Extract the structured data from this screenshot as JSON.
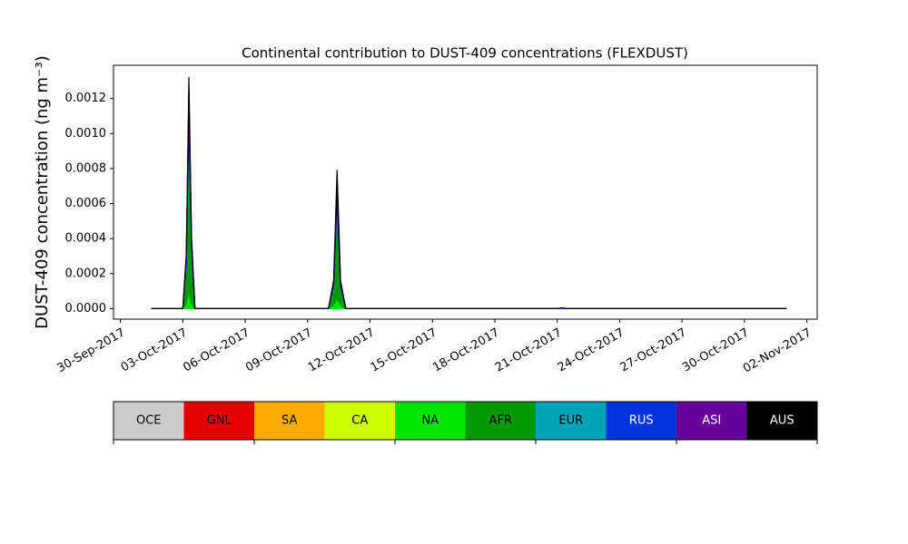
{
  "chart_data": {
    "type": "stacked_area",
    "title": "Continental contribution to DUST-409 concentrations (FLEXDUST)",
    "y_label": "DUST-409 concentration (ng m⁻³)",
    "x": [
      "2017-10-01 12:00",
      "2017-10-03 00:00",
      "2017-10-03 04:00",
      "2017-10-03 07:00",
      "2017-10-03 10:00",
      "2017-10-03 14:00",
      "2017-10-10 00:00",
      "2017-10-10 06:00",
      "2017-10-10 10:00",
      "2017-10-10 14:00",
      "2017-10-10 20:00",
      "2017-10-21 00:00",
      "2017-10-21 06:00",
      "2017-10-21 12:00",
      "2017-11-01 00:00"
    ],
    "xlim": [
      "2017-09-29 16:00",
      "2017-11-02 12:00"
    ],
    "xticks": [
      {
        "value": "2017-09-30",
        "label": "30-Sep-2017"
      },
      {
        "value": "2017-10-03",
        "label": "03-Oct-2017"
      },
      {
        "value": "2017-10-06",
        "label": "06-Oct-2017"
      },
      {
        "value": "2017-10-09",
        "label": "09-Oct-2017"
      },
      {
        "value": "2017-10-12",
        "label": "12-Oct-2017"
      },
      {
        "value": "2017-10-15",
        "label": "15-Oct-2017"
      },
      {
        "value": "2017-10-18",
        "label": "18-Oct-2017"
      },
      {
        "value": "2017-10-21",
        "label": "21-Oct-2017"
      },
      {
        "value": "2017-10-24",
        "label": "24-Oct-2017"
      },
      {
        "value": "2017-10-27",
        "label": "27-Oct-2017"
      },
      {
        "value": "2017-10-30",
        "label": "30-Oct-2017"
      },
      {
        "value": "2017-11-02",
        "label": "02-Nov-2017"
      }
    ],
    "ylim": [
      -6e-05,
      0.00139
    ],
    "yticks": [
      {
        "value": 0,
        "label": "0.0000"
      },
      {
        "value": 0.0002,
        "label": "0.0002"
      },
      {
        "value": 0.0004,
        "label": "0.0004"
      },
      {
        "value": 0.0006,
        "label": "0.0006"
      },
      {
        "value": 0.0008,
        "label": "0.0008"
      },
      {
        "value": 0.001,
        "label": "0.0010"
      },
      {
        "value": 0.0012,
        "label": "0.0012"
      }
    ],
    "series": [
      {
        "name": "OCE",
        "color": "#cccccc",
        "values": [
          0,
          0,
          0,
          0,
          0,
          0,
          0,
          0,
          0,
          0,
          0,
          0,
          0,
          0,
          0
        ]
      },
      {
        "name": "GNL",
        "color": "#e60000",
        "values": [
          0,
          0,
          0,
          0,
          0,
          0,
          0,
          0,
          0,
          0,
          0,
          0,
          0,
          0,
          0
        ]
      },
      {
        "name": "SA",
        "color": "#ffaa00",
        "values": [
          0,
          0,
          0,
          0,
          0,
          0,
          0,
          0,
          0,
          0,
          0,
          0,
          0,
          0,
          0
        ]
      },
      {
        "name": "CA",
        "color": "#ccff00",
        "values": [
          0,
          0,
          0,
          0,
          0,
          0,
          0,
          0,
          0,
          0,
          0,
          0,
          0,
          0,
          0
        ]
      },
      {
        "name": "NA",
        "color": "#00e600",
        "values": [
          0,
          0,
          3e-05,
          0.0001,
          3e-05,
          0,
          0,
          2e-05,
          6e-05,
          2e-05,
          0,
          0,
          0,
          0,
          0
        ]
      },
      {
        "name": "AFR",
        "color": "#009900",
        "values": [
          0,
          0,
          0.0002,
          0.0009,
          0.0003,
          0,
          0,
          0.0001,
          0.0005,
          0.0001,
          0,
          0,
          0,
          0,
          0
        ]
      },
      {
        "name": "EUR",
        "color": "#00a3b8",
        "values": [
          0,
          0,
          2e-05,
          6e-05,
          2e-05,
          0,
          0,
          1e-05,
          4e-05,
          1e-05,
          0,
          0,
          2e-06,
          0,
          0
        ]
      },
      {
        "name": "RUS",
        "color": "#0033dd",
        "values": [
          0,
          0,
          3e-05,
          0.0001,
          3e-05,
          0,
          0,
          1e-05,
          5e-05,
          1e-05,
          0,
          0,
          2e-06,
          0,
          0
        ]
      },
      {
        "name": "ASI",
        "color": "#660099",
        "values": [
          0,
          0,
          2e-05,
          8e-05,
          2e-05,
          0,
          0,
          1e-05,
          4e-05,
          1e-05,
          0,
          0,
          1e-06,
          0,
          0
        ]
      },
      {
        "name": "AUS",
        "color": "#000000",
        "values": [
          0,
          0,
          1e-05,
          8e-05,
          1e-05,
          0,
          0,
          1e-05,
          0.0001,
          1e-05,
          0,
          0,
          0,
          0,
          0
        ]
      }
    ]
  }
}
